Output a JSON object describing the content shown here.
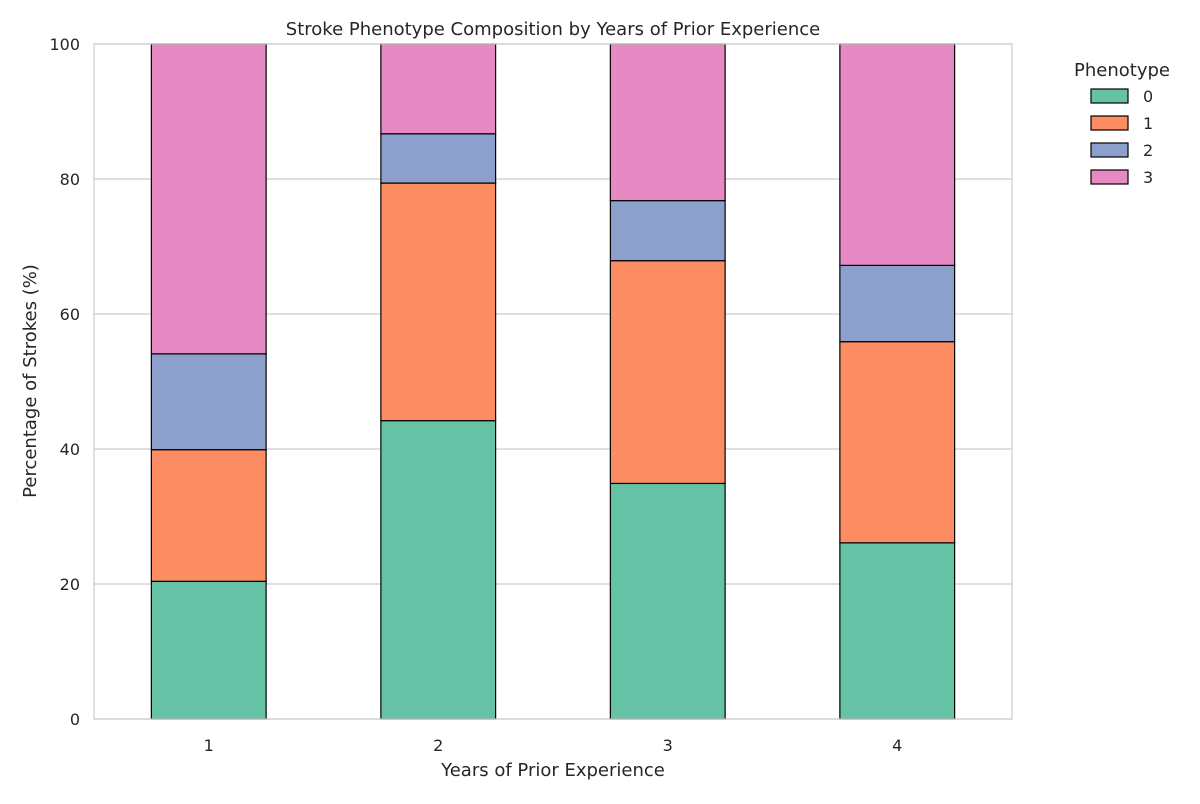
{
  "chart_data": {
    "type": "bar",
    "stacked": true,
    "title": "Stroke Phenotype Composition by Years of Prior Experience",
    "xlabel": "Years of Prior Experience",
    "ylabel": "Percentage of Strokes (%)",
    "ylim": [
      0,
      100
    ],
    "yticks": [
      0,
      20,
      40,
      60,
      80,
      100
    ],
    "grid": true,
    "categories": [
      "1",
      "2",
      "3",
      "4"
    ],
    "legend": {
      "title": "Phenotype",
      "placement": "outside-top-right"
    },
    "series": [
      {
        "name": "0",
        "color": "#66c2a5",
        "values": [
          20.4,
          44.2,
          34.9,
          26.1
        ]
      },
      {
        "name": "1",
        "color": "#fc8d62",
        "values": [
          19.5,
          35.2,
          33.0,
          29.8
        ]
      },
      {
        "name": "2",
        "color": "#8da0cb",
        "values": [
          14.2,
          7.3,
          8.9,
          11.3
        ]
      },
      {
        "name": "3",
        "color": "#e78ac3",
        "values": [
          45.9,
          13.3,
          23.2,
          32.8
        ]
      }
    ]
  }
}
